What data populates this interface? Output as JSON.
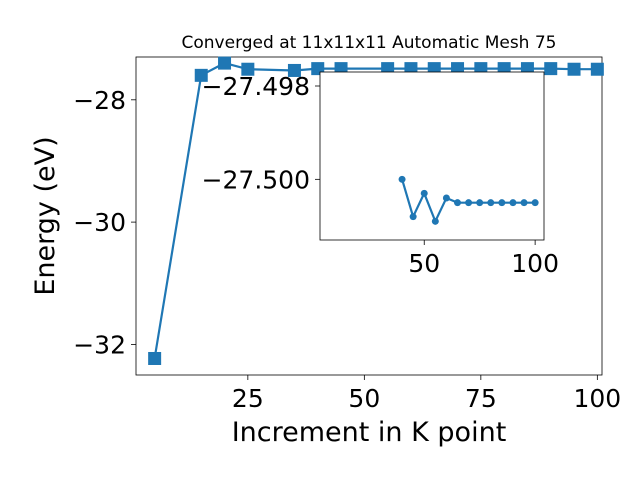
{
  "chart_data": [
    {
      "type": "line",
      "title": "Converged at 11x11x11 Automatic Mesh 75",
      "xlabel": "Increment in K point",
      "ylabel": "Energy (eV)",
      "xlim": [
        1,
        101
      ],
      "ylim": [
        -32.5,
        -27.3
      ],
      "x_ticks": [
        25,
        50,
        75,
        100
      ],
      "x_tick_labels": [
        "25",
        "50",
        "75",
        "100"
      ],
      "y_ticks": [
        -28,
        -30,
        -32
      ],
      "y_tick_labels": [
        "−28",
        "−30",
        "−32"
      ],
      "grid": false,
      "marker": "square",
      "color": "#1f77b4",
      "series": [
        {
          "x": [
            5,
            15,
            20,
            25,
            35,
            40,
            45,
            55,
            60,
            65,
            70,
            75,
            80,
            85,
            90,
            95,
            100
          ],
          "values": [
            -32.23,
            -27.6,
            -27.4,
            -27.5,
            -27.52,
            -27.49,
            -27.49,
            -27.49,
            -27.49,
            -27.49,
            -27.49,
            -27.49,
            -27.49,
            -27.49,
            -27.49,
            -27.5,
            -27.5
          ]
        }
      ]
    },
    {
      "type": "line",
      "role": "inset",
      "xlim": [
        3,
        104
      ],
      "ylim": [
        -27.5013,
        -27.4977
      ],
      "x_ticks": [
        50,
        100
      ],
      "x_tick_labels": [
        "50",
        "100"
      ],
      "y_ticks": [
        -27.5,
        -27.498
      ],
      "y_tick_labels": [
        "−27.500",
        "−27.498"
      ],
      "grid": false,
      "marker": "circle",
      "color": "#1f77b4",
      "series": [
        {
          "x": [
            40,
            45,
            50,
            55,
            60,
            65,
            70,
            75,
            80,
            85,
            90,
            95,
            100
          ],
          "values": [
            -27.5,
            -27.5008,
            -27.5003,
            -27.5009,
            -27.5004,
            -27.5005,
            -27.5005,
            -27.5005,
            -27.5005,
            -27.5005,
            -27.5005,
            -27.5005,
            -27.5005
          ]
        }
      ]
    }
  ]
}
